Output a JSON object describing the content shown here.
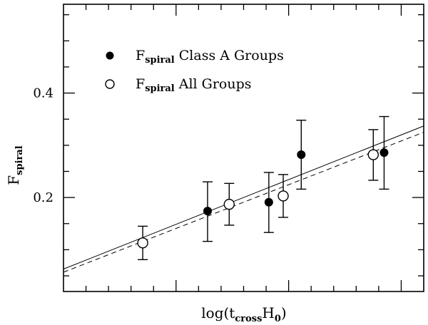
{
  "chart_data": {
    "type": "scatter",
    "xlabel": {
      "main": "log(t",
      "sub": "cross",
      "tail": "H",
      "sub2": "0",
      "close": ")"
    },
    "ylabel": {
      "main": "F",
      "sub": "spiral"
    },
    "ylim": [
      0.02,
      0.57
    ],
    "xlim": [
      0.0,
      1.0
    ],
    "x_tick_labels": false,
    "y_ticks": [
      0.2,
      0.4
    ],
    "y_tick_labels": [
      "0.2",
      "0.4"
    ],
    "grid": false,
    "legend_position": "top-left",
    "series": [
      {
        "name": "Class A Groups",
        "legend_main": "F",
        "legend_sub": "spiral",
        "legend_text": "Class A Groups",
        "marker": "filled-circle",
        "points": [
          {
            "x": 0.4,
            "y": 0.174,
            "err_low": 0.058,
            "err_high": 0.056
          },
          {
            "x": 0.57,
            "y": 0.191,
            "err_low": 0.058,
            "err_high": 0.057
          },
          {
            "x": 0.66,
            "y": 0.282,
            "err_low": 0.066,
            "err_high": 0.066
          },
          {
            "x": 0.89,
            "y": 0.286,
            "err_low": 0.07,
            "err_high": 0.069
          }
        ]
      },
      {
        "name": "All Groups",
        "legend_main": "F",
        "legend_sub": "spiral",
        "legend_text": "All Groups",
        "marker": "open-circle",
        "points": [
          {
            "x": 0.22,
            "y": 0.113,
            "err_low": 0.032,
            "err_high": 0.032
          },
          {
            "x": 0.46,
            "y": 0.187,
            "err_low": 0.04,
            "err_high": 0.04
          },
          {
            "x": 0.61,
            "y": 0.203,
            "err_low": 0.041,
            "err_high": 0.041
          },
          {
            "x": 0.86,
            "y": 0.282,
            "err_low": 0.049,
            "err_high": 0.048
          }
        ]
      }
    ],
    "fit_lines": [
      {
        "style": "solid",
        "y_at_xmin": 0.063,
        "y_at_xmax": 0.337
      },
      {
        "style": "dashed",
        "y_at_xmin": 0.057,
        "y_at_xmax": 0.325
      }
    ]
  }
}
